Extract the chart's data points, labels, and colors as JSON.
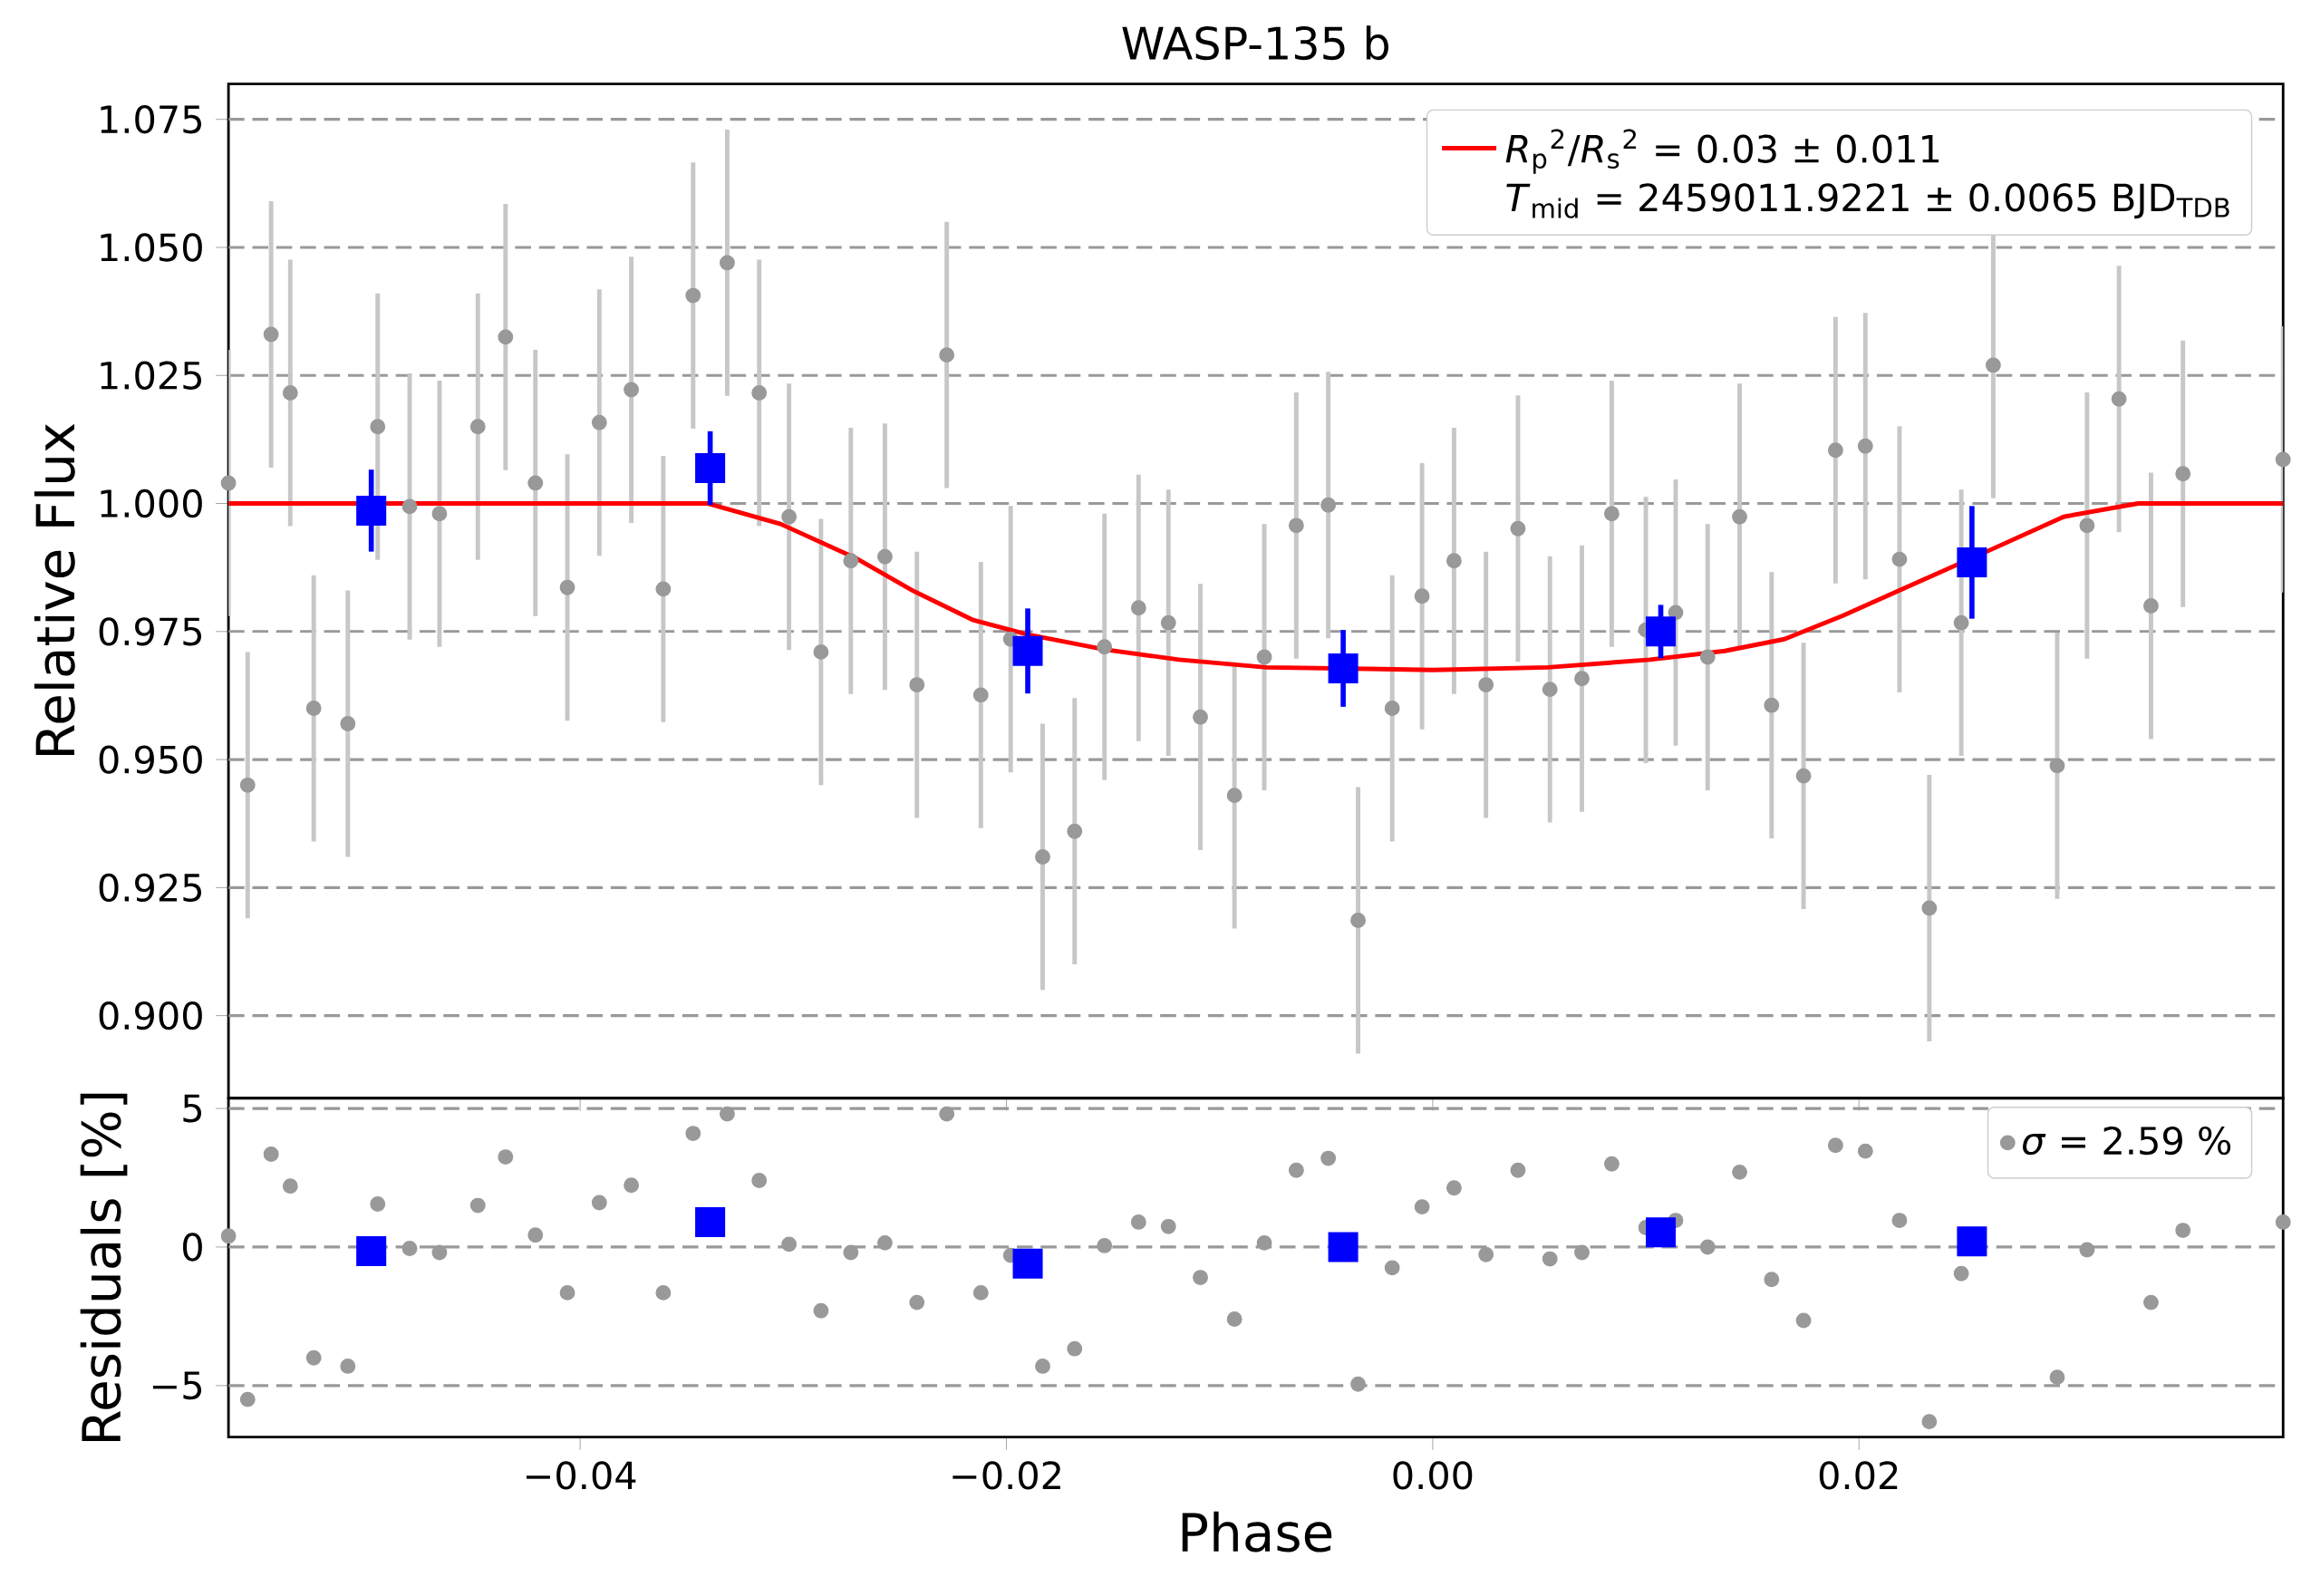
{
  "chart_data": [
    {
      "type": "scatter",
      "title": "WASP-135 b",
      "ylabel": "Relative Flux",
      "xlim": [
        -0.0565,
        0.0399
      ],
      "ylim": [
        0.8839,
        1.0819
      ],
      "xticks": [
        {
          "value": -0.04,
          "label": null
        },
        {
          "value": -0.02,
          "label": null
        },
        {
          "value": 0.0,
          "label": null
        },
        {
          "value": 0.02,
          "label": null
        }
      ],
      "yticks": [
        {
          "value": 0.9,
          "label": "0.900"
        },
        {
          "value": 0.925,
          "label": "0.925"
        },
        {
          "value": 0.95,
          "label": "0.950"
        },
        {
          "value": 0.975,
          "label": "0.975"
        },
        {
          "value": 1.0,
          "label": "1.000"
        },
        {
          "value": 1.025,
          "label": "1.025"
        },
        {
          "value": 1.05,
          "label": "1.050"
        },
        {
          "value": 1.075,
          "label": "1.075"
        }
      ],
      "tick_labels": "y",
      "grid": "y",
      "legend": "top right",
      "annotations": [
        "*T*$_{mid}$ = 2459011.9221 ± 0.0065 BJD$_{TDB}$"
      ],
      "series": [
        {
          "color": "#999999",
          "marker": "circle",
          "x": [
            -0.0565,
            -0.0556,
            -0.0545,
            -0.0536,
            -0.0525,
            -0.0509,
            -0.0495,
            -0.048,
            -0.0466,
            -0.0448,
            -0.0435,
            -0.0421,
            -0.0406,
            -0.0391,
            -0.0376,
            -0.0361,
            -0.0347,
            -0.0331,
            -0.0316,
            -0.0302,
            -0.0287,
            -0.0273,
            -0.0257,
            -0.0242,
            -0.0228,
            -0.0212,
            -0.0198,
            -0.0183,
            -0.0168,
            -0.0154,
            -0.0138,
            -0.0124,
            -0.0109,
            -0.0093,
            -0.0079,
            -0.0064,
            -0.0049,
            -0.0035,
            -0.0019,
            -0.0005,
            0.001,
            0.0025,
            0.004,
            0.0055,
            0.007,
            0.0084,
            0.01,
            0.0114,
            0.0129,
            0.0144,
            0.0159,
            0.0174,
            0.0189,
            0.0203,
            0.0219,
            0.0233,
            0.0248,
            0.0263,
            0.0293,
            0.0307,
            0.0322,
            0.0337,
            0.0352,
            0.0399
          ],
          "values": [
            1.004,
            0.945,
            1.033,
            1.0216,
            0.96,
            0.957,
            1.015,
            0.9994,
            0.998,
            1.015,
            1.0325,
            1.004,
            0.9836,
            1.0158,
            1.0222,
            0.9833,
            1.0406,
            1.047,
            1.0216,
            0.9974,
            0.971,
            0.9888,
            0.9896,
            0.9646,
            1.029,
            0.9626,
            0.9735,
            0.931,
            0.936,
            0.972,
            0.9796,
            0.9767,
            0.9583,
            0.943,
            0.97,
            0.9957,
            0.9997,
            0.9186,
            0.96,
            0.9819,
            0.9888,
            0.9646,
            0.9951,
            0.9637,
            0.9658,
            0.998,
            0.9753,
            0.9787,
            0.97,
            0.9974,
            0.9606,
            0.9468,
            1.0104,
            1.0112,
            0.9891,
            0.921,
            0.9767,
            1.027,
            0.9488,
            0.9957,
            1.0204,
            0.98,
            1.0058,
            1.0086
          ],
          "errors": [
            0.026,
            0.026,
            0.026,
            0.026,
            0.026,
            0.026,
            0.026,
            0.026,
            0.026,
            0.026,
            0.026,
            0.026,
            0.026,
            0.026,
            0.026,
            0.026,
            0.026,
            0.026,
            0.026,
            0.026,
            0.026,
            0.026,
            0.026,
            0.026,
            0.026,
            0.026,
            0.026,
            0.026,
            0.026,
            0.026,
            0.026,
            0.026,
            0.026,
            0.026,
            0.026,
            0.026,
            0.026,
            0.026,
            0.026,
            0.026,
            0.026,
            0.026,
            0.026,
            0.026,
            0.026,
            0.026,
            0.026,
            0.026,
            0.026,
            0.026,
            0.026,
            0.026,
            0.026,
            0.026,
            0.026,
            0.026,
            0.026,
            0.026,
            0.026,
            0.026,
            0.026,
            0.026,
            0.026,
            0.026
          ]
        },
        {
          "type": "line",
          "name": "*R*$_{p}$$^{2}$/*R*$_{s}$$^{2}$ = 0.03 ± 0.011",
          "color": "#ff0000",
          "marker": "none",
          "line_style": "solid",
          "x": [
            -0.0565,
            -0.034,
            -0.0306,
            -0.0271,
            -0.0244,
            -0.0216,
            -0.019,
            -0.0154,
            -0.0119,
            -0.0078,
            0.0,
            0.0054,
            0.0102,
            0.0137,
            0.0165,
            0.0192,
            0.0227,
            0.0262,
            0.0296,
            0.0331,
            0.0399
          ],
          "values": [
            1.0,
            1.0,
            0.996,
            0.9894,
            0.983,
            0.9773,
            0.9744,
            0.9715,
            0.9695,
            0.968,
            0.9675,
            0.968,
            0.9695,
            0.9712,
            0.9735,
            0.978,
            0.9845,
            0.991,
            0.9974,
            1.0,
            1.0
          ]
        },
        {
          "color": "#0000ff",
          "marker": "square",
          "x": [
            -0.0498,
            -0.0339,
            -0.019,
            -0.0042,
            0.0107,
            0.0253
          ],
          "values": [
            0.9986,
            1.0069,
            0.9712,
            0.9678,
            0.975,
            0.9885
          ],
          "errors": [
            0.008,
            0.0072,
            0.0083,
            0.0075,
            0.0052,
            0.011
          ]
        }
      ]
    },
    {
      "type": "scatter",
      "xlabel": "Phase",
      "ylabel": "Residuals [%]",
      "xlim": [
        -0.0565,
        0.0399
      ],
      "ylim": [
        -6.86,
        5.37
      ],
      "xticks": [
        {
          "value": -0.04,
          "label": "−0.04"
        },
        {
          "value": -0.02,
          "label": "−0.02"
        },
        {
          "value": 0.0,
          "label": "0.00"
        },
        {
          "value": 0.02,
          "label": "0.02"
        }
      ],
      "yticks": [
        {
          "value": -5,
          "label": "−5"
        },
        0,
        5
      ],
      "grid": "y",
      "legend": "top right",
      "series": [
        {
          "name": "*σ* = 2.59 %",
          "color": "#999999",
          "marker": "circle",
          "x": [
            -0.0565,
            -0.0556,
            -0.0545,
            -0.0536,
            -0.0525,
            -0.0509,
            -0.0495,
            -0.048,
            -0.0466,
            -0.0448,
            -0.0435,
            -0.0421,
            -0.0406,
            -0.0391,
            -0.0376,
            -0.0361,
            -0.0347,
            -0.0331,
            -0.0316,
            -0.0302,
            -0.0287,
            -0.0273,
            -0.0257,
            -0.0242,
            -0.0228,
            -0.0212,
            -0.0198,
            -0.0183,
            -0.0168,
            -0.0154,
            -0.0138,
            -0.0124,
            -0.0109,
            -0.0093,
            -0.0079,
            -0.0064,
            -0.0049,
            -0.0035,
            -0.0019,
            -0.0005,
            0.001,
            0.0025,
            0.004,
            0.0055,
            0.007,
            0.0084,
            0.01,
            0.0114,
            0.0129,
            0.0144,
            0.0159,
            0.0174,
            0.0189,
            0.0203,
            0.0219,
            0.0233,
            0.0248,
            0.0263,
            0.0293,
            0.0307,
            0.0322,
            0.0337,
            0.0352,
            0.0399
          ],
          "values": [
            0.4,
            -5.5,
            3.35,
            2.2,
            -4.0,
            -4.3,
            1.55,
            -0.05,
            -0.2,
            1.5,
            3.25,
            0.43,
            -1.65,
            1.6,
            2.23,
            -1.65,
            4.1,
            4.8,
            2.4,
            0.1,
            -2.3,
            -0.2,
            0.15,
            -2.0,
            4.8,
            -1.65,
            -0.3,
            -4.3,
            -3.67,
            0.05,
            0.9,
            0.74,
            -1.1,
            -2.6,
            0.15,
            2.77,
            3.2,
            -4.95,
            -0.75,
            1.45,
            2.13,
            -0.27,
            2.77,
            -0.43,
            -0.2,
            3.0,
            0.7,
            0.96,
            0.0,
            2.7,
            -1.17,
            -2.65,
            3.67,
            3.46,
            0.96,
            -6.3,
            -0.96,
            null,
            -4.7,
            -0.1,
            null,
            -2.0,
            0.6,
            0.9
          ]
        },
        {
          "color": "#0000ff",
          "marker": "square",
          "x": [
            -0.0498,
            -0.0339,
            -0.019,
            -0.0042,
            0.0107,
            0.0253
          ],
          "values": [
            -0.15,
            0.9,
            -0.6,
            0.0,
            0.53,
            0.2
          ]
        }
      ]
    }
  ]
}
